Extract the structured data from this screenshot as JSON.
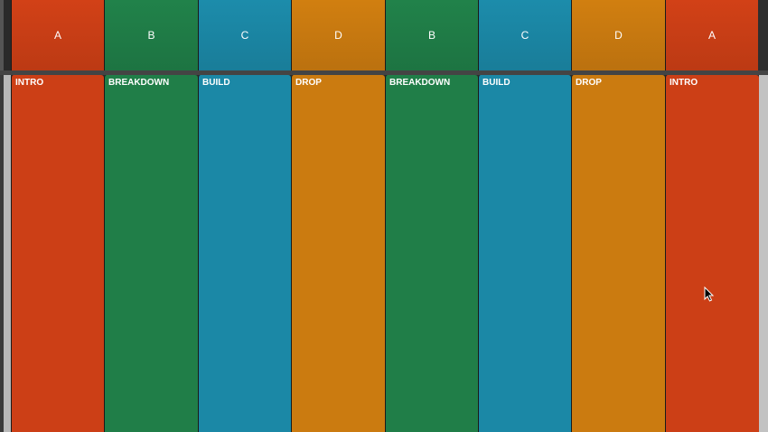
{
  "colors": {
    "A": "#cc3f16",
    "B": "#207e48",
    "C": "#1b88a6",
    "D": "#cb7b10"
  },
  "scenes": [
    {
      "label": "A",
      "color_key": "A"
    },
    {
      "label": "B",
      "color_key": "B"
    },
    {
      "label": "C",
      "color_key": "C"
    },
    {
      "label": "D",
      "color_key": "D"
    },
    {
      "label": "B",
      "color_key": "B"
    },
    {
      "label": "C",
      "color_key": "C"
    },
    {
      "label": "D",
      "color_key": "D"
    },
    {
      "label": "A",
      "color_key": "A"
    }
  ],
  "clips": [
    {
      "label": "INTRO",
      "color_key": "A"
    },
    {
      "label": "BREAKDOWN",
      "color_key": "B"
    },
    {
      "label": "BUILD",
      "color_key": "C"
    },
    {
      "label": "DROP",
      "color_key": "D"
    },
    {
      "label": "BREAKDOWN",
      "color_key": "B"
    },
    {
      "label": "BUILD",
      "color_key": "C"
    },
    {
      "label": "DROP",
      "color_key": "D"
    },
    {
      "label": "INTRO",
      "color_key": "A"
    }
  ]
}
